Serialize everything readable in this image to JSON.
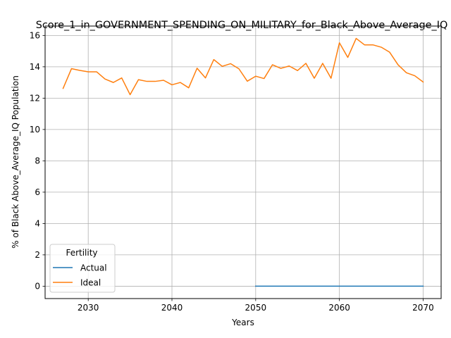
{
  "chart_data": {
    "type": "line",
    "title": "Score_1_in_GOVERNMENT_SPENDING_ON_MILITARY_for_Black_Above_Average_IQ",
    "xlabel": "Years",
    "ylabel": "% of Black Above_Average_IQ Population",
    "xlim": [
      2024.85,
      2072.15
    ],
    "ylim": [
      -0.79,
      16.6
    ],
    "xticks": [
      2030,
      2040,
      2050,
      2060,
      2070
    ],
    "yticks": [
      0,
      2,
      4,
      6,
      8,
      10,
      12,
      14,
      16
    ],
    "grid": true,
    "legend": {
      "title": "Fertility",
      "placement": "lower-left"
    },
    "series": [
      {
        "name": "Actual",
        "color": "#1f77b4",
        "x": [
          2050,
          2051,
          2052,
          2053,
          2054,
          2055,
          2056,
          2057,
          2058,
          2059,
          2060,
          2061,
          2062,
          2063,
          2064,
          2065,
          2066,
          2067,
          2068,
          2069,
          2070
        ],
        "values": [
          0,
          0,
          0,
          0,
          0,
          0,
          0,
          0,
          0,
          0,
          0,
          0,
          0,
          0,
          0,
          0,
          0,
          0,
          0,
          0,
          0
        ]
      },
      {
        "name": "Ideal",
        "color": "#ff7f0e",
        "x": [
          2027,
          2028,
          2029,
          2030,
          2031,
          2032,
          2033,
          2034,
          2035,
          2036,
          2037,
          2038,
          2039,
          2040,
          2041,
          2042,
          2043,
          2044,
          2045,
          2046,
          2047,
          2048,
          2049,
          2050,
          2051,
          2052,
          2053,
          2054,
          2055,
          2056,
          2057,
          2058,
          2059,
          2060,
          2061,
          2062,
          2063,
          2064,
          2065,
          2066,
          2067,
          2068,
          2069,
          2070
        ],
        "values": [
          12.62,
          13.88,
          13.77,
          13.68,
          13.68,
          13.22,
          13.0,
          13.29,
          12.22,
          13.18,
          13.07,
          13.07,
          13.14,
          12.85,
          13.0,
          12.66,
          13.91,
          13.29,
          14.46,
          14.03,
          14.2,
          13.87,
          13.08,
          13.4,
          13.25,
          14.13,
          13.9,
          14.05,
          13.76,
          14.22,
          13.27,
          14.22,
          13.27,
          15.53,
          14.6,
          15.81,
          15.4,
          15.4,
          15.25,
          14.93,
          14.13,
          13.62,
          13.43,
          13.03
        ]
      }
    ]
  }
}
